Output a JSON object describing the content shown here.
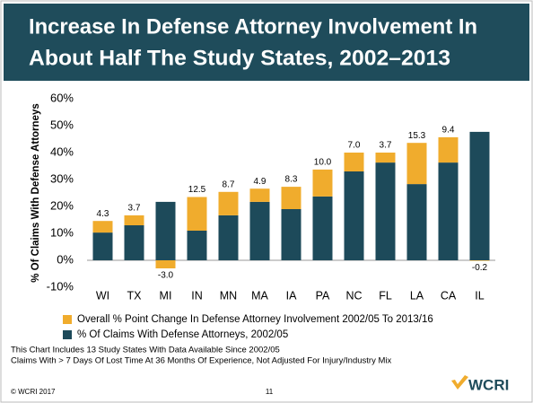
{
  "chart_data": {
    "type": "bar",
    "title": [
      "Increase In Defense Attorney Involvement In",
      "About Half The Study States, 2002–2013"
    ],
    "ylabel": "% Of Claims With Defense Attorneys",
    "categories": [
      "WI",
      "TX",
      "MI",
      "IN",
      "MN",
      "MA",
      "IA",
      "PA",
      "NC",
      "FL",
      "LA",
      "CA",
      "IL"
    ],
    "series": [
      {
        "name": "Overall % Point Change In Defense Attorney Involvement 2002/05 To 2013/16",
        "color": "#f0ac2d",
        "values": [
          4.3,
          3.7,
          -3.0,
          12.5,
          8.7,
          4.9,
          8.3,
          10.0,
          7.0,
          3.7,
          15.3,
          9.4,
          -0.2
        ],
        "value_labels": [
          "4.3",
          "3.7",
          "-3.0",
          "12.5",
          "8.7",
          "4.9",
          "8.3",
          "10.0",
          "7.0",
          "3.7",
          "15.3",
          "9.4",
          "-0.2"
        ]
      },
      {
        "name": "% Of Claims With Defense Attorneys, 2002/05",
        "color": "#1d4a5a",
        "values": [
          10.3,
          13,
          21.7,
          11,
          16.7,
          21.7,
          19,
          23.7,
          33,
          36.3,
          28.3,
          36.3,
          47.7
        ]
      }
    ],
    "ylim": [
      -10,
      60
    ],
    "yticks": [
      {
        "value": -10,
        "label": "-10%"
      },
      {
        "value": 0,
        "label": "0%"
      },
      {
        "value": 10,
        "label": "10%"
      },
      {
        "value": 20,
        "label": "20%"
      },
      {
        "value": 30,
        "label": "30%"
      },
      {
        "value": 40,
        "label": "40%"
      },
      {
        "value": 50,
        "label": "50%"
      },
      {
        "value": 60,
        "label": "60%"
      }
    ],
    "grid": false,
    "notes": [
      "This Chart Includes 13 Study States With Data Available Since 2002/05",
      "Claims With > 7 Days Of Lost Time At 36 Months Of Experience, Not Adjusted For Injury/Industry Mix"
    ]
  },
  "footer": {
    "copyright": "© WCRI 2017",
    "page": "11",
    "logo": "WCRI"
  }
}
